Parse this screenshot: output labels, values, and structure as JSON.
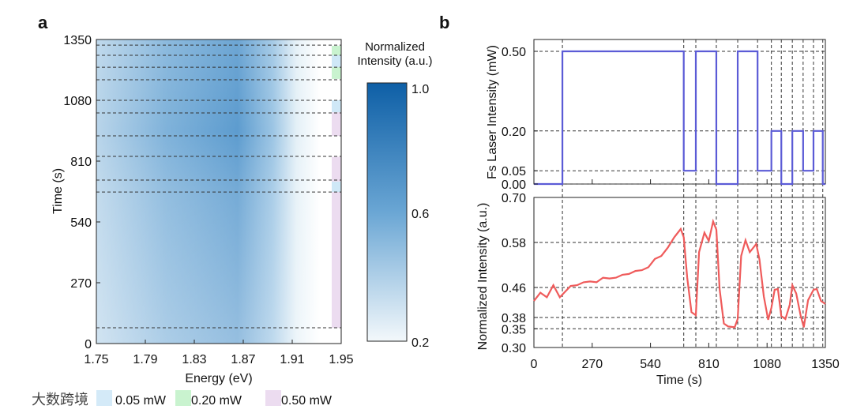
{
  "chart_data": [
    {
      "panel": "a",
      "type": "heatmap",
      "xlabel": "Energy (eV)",
      "ylabel": "Time (s)",
      "xlim": [
        1.75,
        1.95
      ],
      "ylim": [
        0,
        1350
      ],
      "xticks": [
        "1.75",
        "1.79",
        "1.83",
        "1.87",
        "1.91",
        "1.95"
      ],
      "yticks": [
        "0",
        "270",
        "540",
        "810",
        "1080",
        "1350"
      ],
      "colorbar": {
        "title1": "Normalized",
        "title2": "Intensity (a.u.)",
        "ticks": [
          "1.0",
          "0.6",
          "0.2"
        ],
        "range": [
          0.2,
          1.0
        ]
      },
      "dashed_times": [
        70,
        673,
        726,
        831,
        922,
        1024,
        1080,
        1171,
        1227,
        1280,
        1325
      ],
      "power_strips": [
        {
          "from": 70,
          "to": 673,
          "power": "0.50"
        },
        {
          "from": 673,
          "to": 719,
          "power": "0.05"
        },
        {
          "from": 719,
          "to": 829,
          "power": "0.50"
        },
        {
          "from": 922,
          "to": 1027,
          "power": "0.50"
        },
        {
          "from": 1027,
          "to": 1080,
          "power": "0.05"
        },
        {
          "from": 1175,
          "to": 1227,
          "power": "0.20"
        },
        {
          "from": 1227,
          "to": 1280,
          "power": "0.05"
        },
        {
          "from": 1280,
          "to": 1322,
          "power": "0.20"
        }
      ],
      "legend": [
        {
          "label": "0.05 mW",
          "color": "#cfe8f7"
        },
        {
          "label": "0.20 mW",
          "color": "#c9f3cf"
        },
        {
          "label": "0.50 mW",
          "color": "#ecdcf0"
        }
      ]
    },
    {
      "panel": "b",
      "type": "line",
      "ylabel": "Fs Laser Intensity (mW)",
      "yticks": [
        "0.50",
        "0.20",
        "0.05",
        "0.00"
      ],
      "ytick_values": [
        0.5,
        0.2,
        0.05,
        0
      ],
      "color": "#5b5bd6",
      "steps": {
        "t": [
          0,
          132,
          694,
          750,
          845,
          944,
          1036,
          1100,
          1146,
          1197,
          1247,
          1295,
          1338,
          1350
        ],
        "v": [
          0,
          0.5,
          0.05,
          0.5,
          0,
          0.5,
          0.05,
          0.2,
          0,
          0.2,
          0.05,
          0.2,
          0,
          0
        ]
      }
    },
    {
      "panel": "b",
      "type": "line",
      "xlabel": "Time (s)",
      "ylabel": "Normalized Intensity (a.u.)",
      "xlim": [
        0,
        1350
      ],
      "ylim": [
        0.3,
        0.7
      ],
      "xticks": [
        "0",
        "270",
        "540",
        "810",
        "1080",
        "1350"
      ],
      "yticks": [
        "0.70",
        "0.58",
        "0.46",
        "0.38",
        "0.35",
        "0.30"
      ],
      "ytick_values": [
        0.7,
        0.58,
        0.46,
        0.38,
        0.35,
        0.3
      ],
      "color": "#ef5b5b",
      "x": [
        0,
        30,
        60,
        90,
        120,
        140,
        170,
        200,
        230,
        260,
        290,
        320,
        350,
        380,
        410,
        440,
        470,
        500,
        530,
        560,
        590,
        620,
        650,
        680,
        694,
        710,
        730,
        750,
        765,
        790,
        810,
        830,
        845,
        860,
        880,
        900,
        930,
        944,
        960,
        980,
        1000,
        1030,
        1045,
        1065,
        1085,
        1100,
        1115,
        1130,
        1146,
        1165,
        1185,
        1197,
        1215,
        1235,
        1250,
        1270,
        1295,
        1310,
        1330,
        1350
      ],
      "y": [
        0.43,
        0.44,
        0.44,
        0.46,
        0.44,
        0.44,
        0.47,
        0.46,
        0.48,
        0.47,
        0.48,
        0.48,
        0.49,
        0.48,
        0.5,
        0.49,
        0.51,
        0.5,
        0.52,
        0.53,
        0.55,
        0.56,
        0.6,
        0.61,
        0.6,
        0.48,
        0.4,
        0.38,
        0.56,
        0.6,
        0.59,
        0.63,
        0.62,
        0.45,
        0.37,
        0.35,
        0.36,
        0.37,
        0.55,
        0.58,
        0.56,
        0.57,
        0.54,
        0.43,
        0.38,
        0.4,
        0.46,
        0.45,
        0.39,
        0.37,
        0.42,
        0.46,
        0.45,
        0.38,
        0.36,
        0.42,
        0.46,
        0.45,
        0.43,
        0.41
      ]
    }
  ],
  "labels": {
    "panel_a": "a",
    "panel_b": "b"
  },
  "watermark": "大数跨境"
}
